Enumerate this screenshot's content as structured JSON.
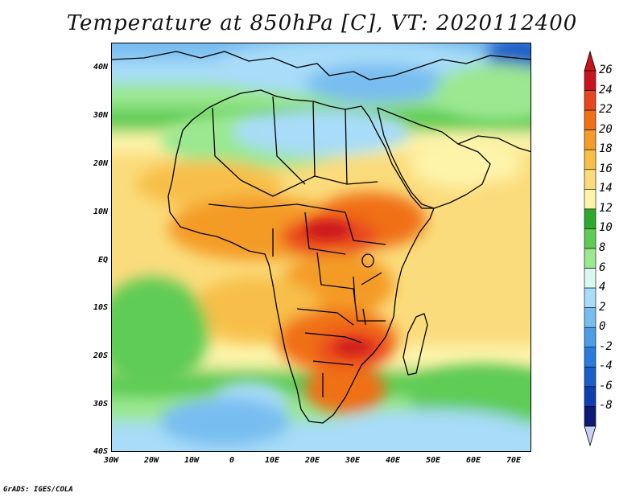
{
  "title": "Temperature at 850hPa [C], VT: 2020112400",
  "credit": "GrADS: IGES/COLA",
  "lat_labels": [
    "40N",
    "30N",
    "20N",
    "10N",
    "EQ",
    "10S",
    "20S",
    "30S",
    "40S"
  ],
  "lon_labels": [
    "30W",
    "20W",
    "10W",
    "0",
    "10E",
    "20E",
    "30E",
    "40E",
    "50E",
    "60E",
    "70E"
  ],
  "colorbar": {
    "labels": [
      "26",
      "24",
      "22",
      "20",
      "18",
      "16",
      "14",
      "12",
      "10",
      "8",
      "6",
      "4",
      "2",
      "0",
      "-2",
      "-4",
      "-6",
      "-8"
    ],
    "colors": [
      "#c8141e",
      "#e8461e",
      "#f07018",
      "#f49b28",
      "#f7bf4a",
      "#fbdc7c",
      "#fdf4aa",
      "#2ea82e",
      "#5fcc55",
      "#9ae88f",
      "#d8f8f0",
      "#a8dcf8",
      "#78bdf0",
      "#4a9de6",
      "#2a7bdc",
      "#1a5dc8",
      "#103db0",
      "#0c1a78"
    ],
    "over_color": "#c8141e",
    "under_color": "#c8d2f8"
  }
}
